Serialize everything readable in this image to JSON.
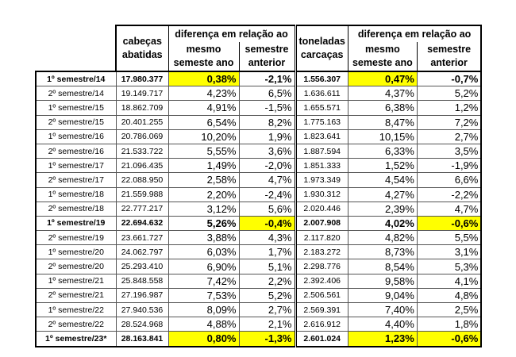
{
  "header": {
    "cabecas": "cabeças abatidas",
    "diff_group_1": "diferença em relação ao",
    "mesmo_1": "mesmo semeste ano",
    "semestre_1": "semestre anterior",
    "toneladas": "toneladas carcaças",
    "diff_group_2": "diferença em relação ao",
    "mesmo_2": "mesmo semeste ano",
    "semestre_2": "semestre anterior"
  },
  "highlight_color": "#ffff00",
  "rows": [
    {
      "label": "1º semestre/14",
      "bold": true,
      "cab": "17.980.377",
      "c_yoy": "0,38%",
      "c_qoq": "-2,1%",
      "ton": "1.556.307",
      "t_yoy": "0,47%",
      "t_qoq": "-0,7%",
      "hl": [
        "c_yoy",
        "t_yoy"
      ]
    },
    {
      "label": "2º semestre/14",
      "cab": "19.149.717",
      "c_yoy": "4,23%",
      "c_qoq": "6,5%",
      "ton": "1.636.611",
      "t_yoy": "4,37%",
      "t_qoq": "5,2%",
      "hl": []
    },
    {
      "label": "1º semestre/15",
      "cab": "18.862.709",
      "c_yoy": "4,91%",
      "c_qoq": "-1,5%",
      "ton": "1.655.571",
      "t_yoy": "6,38%",
      "t_qoq": "1,2%",
      "hl": []
    },
    {
      "label": "2º semestre/15",
      "cab": "20.401.255",
      "c_yoy": "6,54%",
      "c_qoq": "8,2%",
      "ton": "1.775.163",
      "t_yoy": "8,47%",
      "t_qoq": "7,2%",
      "hl": []
    },
    {
      "label": "1º semestre/16",
      "cab": "20.786.069",
      "c_yoy": "10,20%",
      "c_qoq": "1,9%",
      "ton": "1.823.641",
      "t_yoy": "10,15%",
      "t_qoq": "2,7%",
      "hl": []
    },
    {
      "label": "2º semestre/16",
      "cab": "21.533.722",
      "c_yoy": "5,55%",
      "c_qoq": "3,6%",
      "ton": "1.887.594",
      "t_yoy": "6,33%",
      "t_qoq": "3,5%",
      "hl": []
    },
    {
      "label": "1º semestre/17",
      "cab": "21.096.435",
      "c_yoy": "1,49%",
      "c_qoq": "-2,0%",
      "ton": "1.851.333",
      "t_yoy": "1,52%",
      "t_qoq": "-1,9%",
      "hl": []
    },
    {
      "label": "2º semestre/17",
      "cab": "22.088.950",
      "c_yoy": "2,58%",
      "c_qoq": "4,7%",
      "ton": "1.973.349",
      "t_yoy": "4,54%",
      "t_qoq": "6,6%",
      "hl": []
    },
    {
      "label": "1º semestre/18",
      "cab": "21.559.988",
      "c_yoy": "2,20%",
      "c_qoq": "-2,4%",
      "ton": "1.930.312",
      "t_yoy": "4,27%",
      "t_qoq": "-2,2%",
      "hl": []
    },
    {
      "label": "2º semestre/18",
      "cab": "22.777.217",
      "c_yoy": "3,12%",
      "c_qoq": "5,6%",
      "ton": "2.020.446",
      "t_yoy": "2,39%",
      "t_qoq": "4,7%",
      "hl": []
    },
    {
      "label": "1º semestre/19",
      "bold": true,
      "cab": "22.694.632",
      "c_yoy": "5,26%",
      "c_qoq": "-0,4%",
      "ton": "2.007.908",
      "t_yoy": "4,02%",
      "t_qoq": "-0,6%",
      "hl": [
        "c_qoq",
        "t_qoq"
      ]
    },
    {
      "label": "2º semestre/19",
      "cab": "23.661.727",
      "c_yoy": "3,88%",
      "c_qoq": "4,3%",
      "ton": "2.117.820",
      "t_yoy": "4,82%",
      "t_qoq": "5,5%",
      "hl": []
    },
    {
      "label": "1º semestre/20",
      "cab": "24.062.797",
      "c_yoy": "6,03%",
      "c_qoq": "1,7%",
      "ton": "2.183.272",
      "t_yoy": "8,73%",
      "t_qoq": "3,1%",
      "hl": []
    },
    {
      "label": "2º semestre/20",
      "cab": "25.293.410",
      "c_yoy": "6,90%",
      "c_qoq": "5,1%",
      "ton": "2.298.776",
      "t_yoy": "8,54%",
      "t_qoq": "5,3%",
      "hl": []
    },
    {
      "label": "1º semestre/21",
      "cab": "25.848.558",
      "c_yoy": "7,42%",
      "c_qoq": "2,2%",
      "ton": "2.392.406",
      "t_yoy": "9,58%",
      "t_qoq": "4,1%",
      "hl": []
    },
    {
      "label": "2º semestre/21",
      "cab": "27.196.987",
      "c_yoy": "7,53%",
      "c_qoq": "5,2%",
      "ton": "2.506.561",
      "t_yoy": "9,04%",
      "t_qoq": "4,8%",
      "hl": []
    },
    {
      "label": "1º semestre/22",
      "cab": "27.940.536",
      "c_yoy": "8,09%",
      "c_qoq": "2,7%",
      "ton": "2.569.391",
      "t_yoy": "7,40%",
      "t_qoq": "2,5%",
      "hl": []
    },
    {
      "label": "2º semestre/22",
      "cab": "28.524.968",
      "c_yoy": "4,88%",
      "c_qoq": "2,1%",
      "ton": "2.616.912",
      "t_yoy": "4,40%",
      "t_qoq": "1,8%",
      "hl": []
    },
    {
      "label": "1º semestre/23*",
      "bold": true,
      "cab": "28.163.841",
      "c_yoy": "0,80%",
      "c_qoq": "-1,3%",
      "ton": "2.601.024",
      "t_yoy": "1,23%",
      "t_qoq": "-0,6%",
      "hl": [
        "c_yoy",
        "c_qoq",
        "t_yoy",
        "t_qoq"
      ]
    }
  ]
}
